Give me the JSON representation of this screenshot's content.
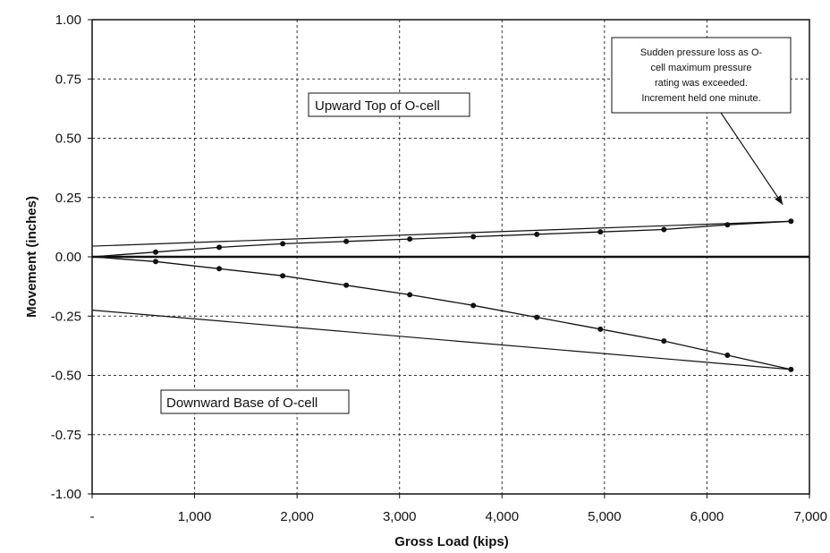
{
  "chart_data": {
    "type": "line",
    "xlabel": "Gross Load  (kips)",
    "ylabel": "Movement  (inches)",
    "xlim": [
      0,
      7000
    ],
    "ylim": [
      -1.0,
      1.0
    ],
    "x_ticks": [
      0,
      1000,
      2000,
      3000,
      4000,
      5000,
      6000,
      7000
    ],
    "x_tick_labels": [
      "-",
      "1,000",
      "2,000",
      "3,000",
      "4,000",
      "5,000",
      "6,000",
      "7,000"
    ],
    "y_ticks": [
      1.0,
      0.75,
      0.5,
      0.25,
      0.0,
      -0.25,
      -0.5,
      -0.75,
      -1.0
    ],
    "y_tick_labels": [
      "1.00",
      "0.75",
      "0.50",
      "0.25",
      "0.00",
      "-0.25",
      "-0.50",
      "-0.75",
      "-1.00"
    ],
    "grid": true,
    "series": [
      {
        "name": "Upward Top of O-cell",
        "x": [
          0,
          620,
          1240,
          1860,
          2480,
          3100,
          3720,
          4340,
          4960,
          5580,
          6200,
          6820
        ],
        "y": [
          0.0,
          0.02,
          0.04,
          0.055,
          0.065,
          0.075,
          0.085,
          0.095,
          0.105,
          0.115,
          0.135,
          0.15
        ]
      },
      {
        "name": "Downward Base of O-cell",
        "x": [
          0,
          620,
          1240,
          1860,
          2480,
          3100,
          3720,
          4340,
          4960,
          5580,
          6200,
          6820
        ],
        "y": [
          0.0,
          -0.02,
          -0.05,
          -0.08,
          -0.12,
          -0.16,
          -0.205,
          -0.255,
          -0.305,
          -0.355,
          -0.415,
          -0.475
        ]
      }
    ],
    "reference_lines": [
      {
        "x": [
          0,
          6820
        ],
        "y": [
          0.045,
          0.15
        ]
      },
      {
        "x": [
          0,
          6820
        ],
        "y": [
          -0.225,
          -0.475
        ]
      }
    ],
    "annotations": {
      "upward_label": "Upward Top of O-cell",
      "downward_label": "Downward Base of O-cell",
      "note_lines": [
        "Sudden  pressure loss as O-",
        "cell maximum  pressure",
        "rating was exceeded.",
        "Increment held one minute."
      ],
      "arrow_target": {
        "x": 6740,
        "y": 0.22
      }
    }
  }
}
